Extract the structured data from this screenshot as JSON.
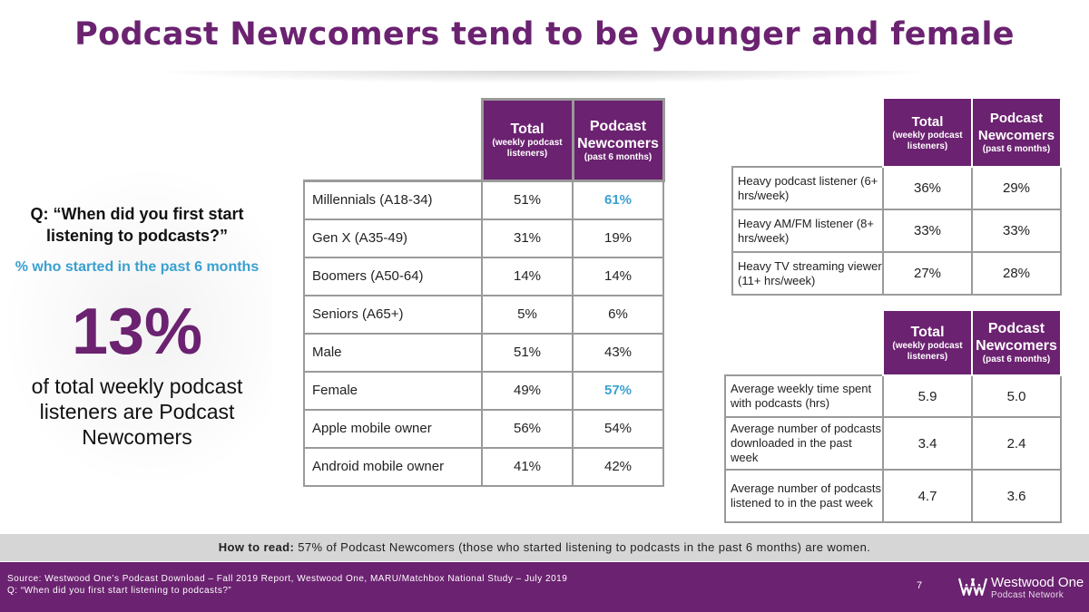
{
  "title": "Podcast Newcomers tend to be younger and female",
  "left_panel": {
    "question": "Q: “When did you first start listening to podcasts?”",
    "subtitle": "% who started in the past 6 months",
    "big_stat": "13%",
    "description": "of total weekly podcast listeners are Podcast Newcomers"
  },
  "main_table": {
    "headers": [
      {
        "title": "Total",
        "sub": "(weekly podcast listeners)"
      },
      {
        "title": "Podcast Newcomers",
        "sub": "(past 6 months)"
      }
    ],
    "rows": [
      {
        "label": "Millennials (A18-34)",
        "total": "51%",
        "newcomers": "61%"
      },
      {
        "label": "Gen X (A35-49)",
        "total": "31%",
        "newcomers": "19%"
      },
      {
        "label": "Boomers (A50-64)",
        "total": "14%",
        "newcomers": "14%"
      },
      {
        "label": "Seniors (A65+)",
        "total": "5%",
        "newcomers": "6%"
      },
      {
        "label": "Male",
        "total": "51%",
        "newcomers": "43%"
      },
      {
        "label": "Female",
        "total": "49%",
        "newcomers": "57%"
      },
      {
        "label": "Apple mobile owner",
        "total": "56%",
        "newcomers": "54%"
      },
      {
        "label": "Android mobile owner",
        "total": "41%",
        "newcomers": "42%"
      }
    ],
    "highlight_color": "#3aa0d0"
  },
  "heavy_table": {
    "headers": [
      {
        "title": "Total",
        "sub": "(weekly podcast listeners)"
      },
      {
        "title": "Podcast Newcomers",
        "sub": "(past 6 months)"
      }
    ],
    "rows": [
      {
        "label": "Heavy podcast listener (6+ hrs/week)",
        "total": "36%",
        "newcomers": "29%"
      },
      {
        "label": "Heavy AM/FM listener (8+ hrs/week)",
        "total": "33%",
        "newcomers": "33%"
      },
      {
        "label": "Heavy TV streaming viewer (11+ hrs/week)",
        "total": "27%",
        "newcomers": "28%"
      }
    ]
  },
  "avg_table": {
    "headers": [
      {
        "title": "Total",
        "sub": "(weekly podcast listeners)"
      },
      {
        "title": "Podcast Newcomers",
        "sub": "(past 6 months)"
      }
    ],
    "rows": [
      {
        "label": "Average weekly time spent with podcasts (hrs)",
        "total": "5.9",
        "newcomers": "5.0"
      },
      {
        "label": "Average number of podcasts downloaded in the past week",
        "total": "3.4",
        "newcomers": "2.4"
      },
      {
        "label": "Average number of podcasts listened to in the past week",
        "total": "4.7",
        "newcomers": "3.6"
      }
    ]
  },
  "how_to_read": {
    "label": "How to read:",
    "text": "57% of Podcast Newcomers (those who started listening to podcasts in the past 6 months) are women."
  },
  "footer": {
    "source_line1": "Source: Westwood One’s Podcast Download – Fall 2019 Report, Westwood One, MARU/Matchbox National Study – July 2019",
    "source_line2": "Q: “When did you first start listening to podcasts?”",
    "page_number": "7",
    "logo_name": "Westwood One",
    "logo_sub": "Podcast Network"
  },
  "colors": {
    "brand_purple": "#6b2270",
    "accent_blue": "#3aa0d0",
    "band_gray": "#d6d6d6"
  }
}
